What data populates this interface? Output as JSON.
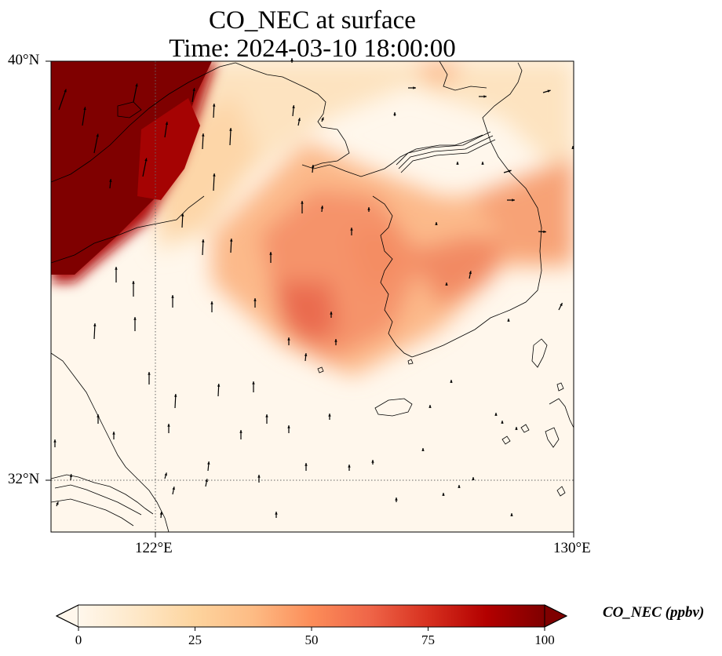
{
  "map": {
    "title_line1": "CO_NEC at surface",
    "title_line2": "Time: 2024-03-10 18:00:00",
    "field": "CO_NEC",
    "level": "surface",
    "lat_labels": [
      "40°N",
      "32°N"
    ],
    "lon_labels": [
      "122°E",
      "130°E"
    ],
    "extent": {
      "lon_min": 120,
      "lon_max": 130,
      "lat_min": 31,
      "lat_max": 40
    },
    "gridlines": {
      "lons": [
        122
      ],
      "lats": [
        32
      ],
      "style": "dotted"
    },
    "colormap": "OrRd"
  },
  "colorbar": {
    "label": "CO_NEC (ppbv)",
    "ticks": [
      "0",
      "25",
      "50",
      "75",
      "100"
    ],
    "min": 0,
    "max": 100,
    "extend": "both",
    "colors": [
      "#fff7ec",
      "#fee8c8",
      "#fdd49e",
      "#fdbb84",
      "#fc8d59",
      "#ef6548",
      "#d7301f",
      "#b30000",
      "#7f0000"
    ]
  }
}
